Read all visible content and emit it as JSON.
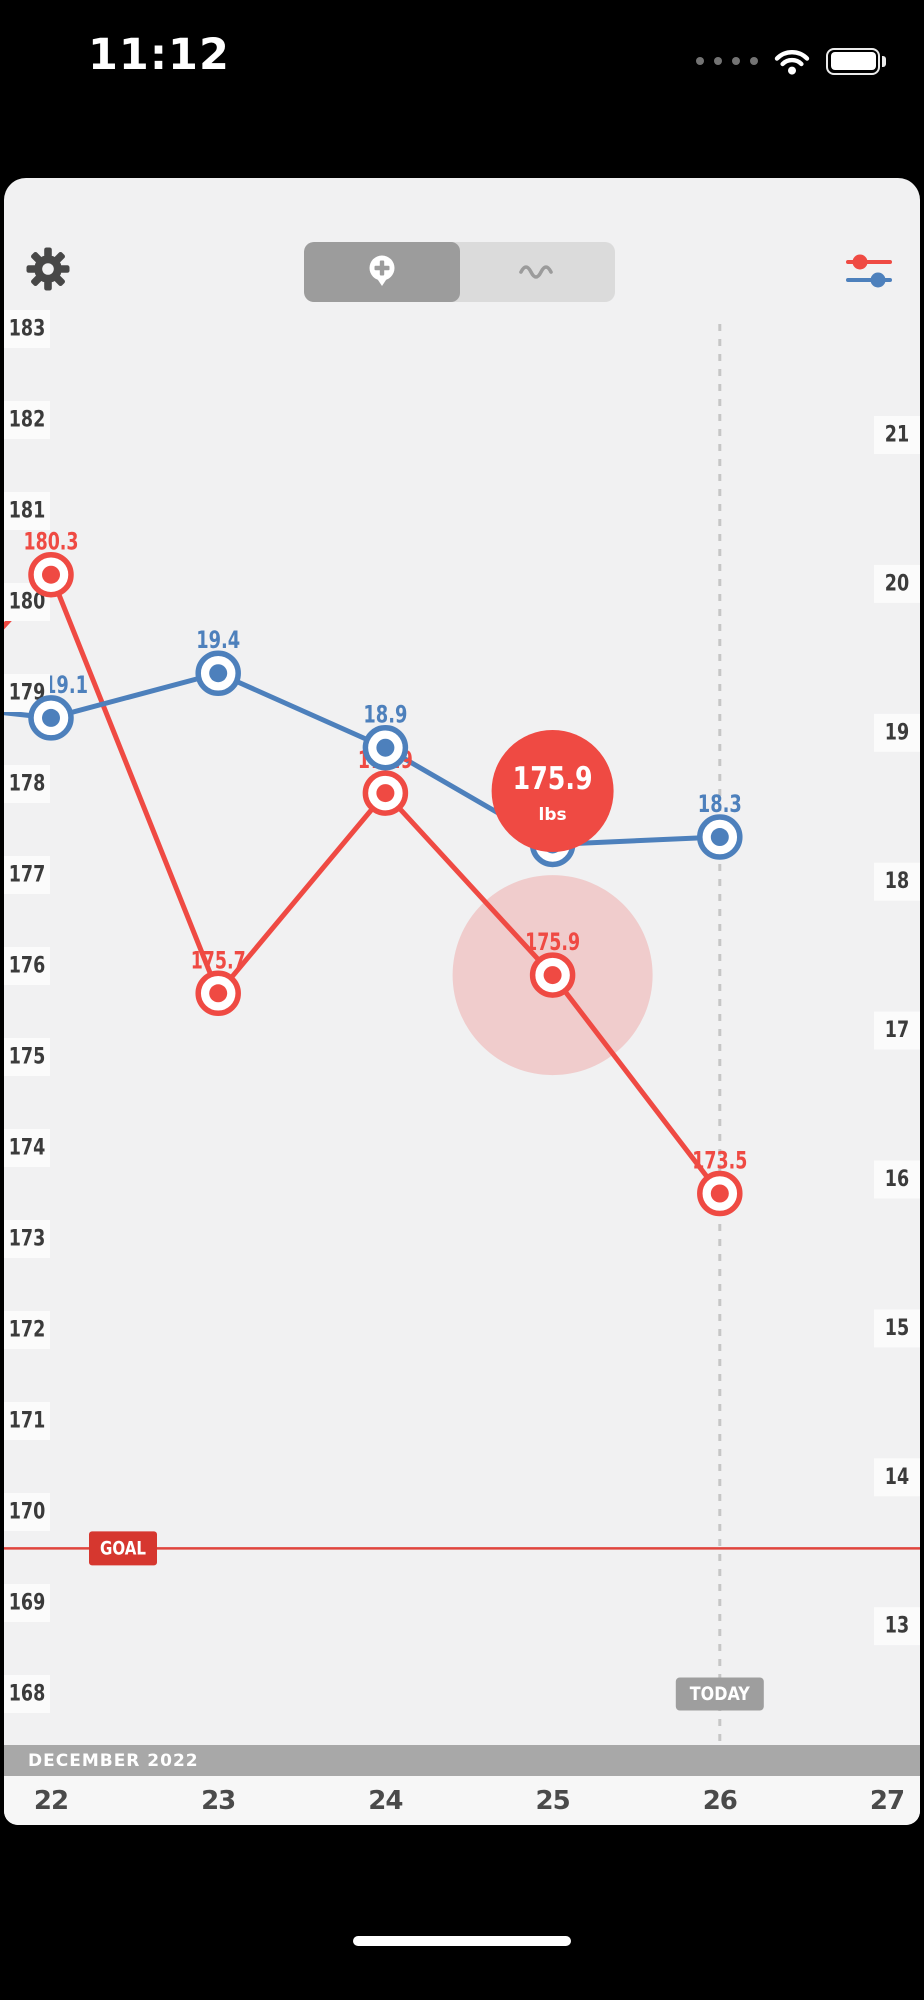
{
  "status_bar": {
    "time": "11:12",
    "icons": [
      "cellular-dots-icon",
      "wifi-icon",
      "battery-full-icon"
    ]
  },
  "toolbar": {
    "settings_icon": "gear-icon",
    "segmented_control": {
      "segments": [
        {
          "icon": "add-entry-pin-icon",
          "selected": true
        },
        {
          "icon": "trend-wave-icon",
          "selected": false
        }
      ]
    },
    "series_filter_icon": "red-blue-sliders-icon"
  },
  "chart_data": {
    "type": "line",
    "x_axis": {
      "month_label": "DECEMBER 2022",
      "ticks": [
        "22",
        "23",
        "24",
        "25",
        "26",
        "27"
      ]
    },
    "left_axis": {
      "unit": "lbs",
      "range": [
        168,
        183
      ],
      "ticks": [
        "183",
        "182",
        "181",
        "180",
        "179",
        "178",
        "177",
        "176",
        "175",
        "174",
        "173",
        "172",
        "171",
        "170",
        "169",
        "168"
      ]
    },
    "right_axis": {
      "range": [
        13,
        21
      ],
      "ticks": [
        "21",
        "20",
        "19",
        "18",
        "17",
        "16",
        "15",
        "14",
        "13"
      ]
    },
    "series": [
      {
        "name": "weight",
        "color": "#ef4a43",
        "axis": "left",
        "days": [
          22,
          23,
          24,
          25,
          26
        ],
        "values": [
          180.3,
          175.7,
          177.9,
          175.9,
          173.5
        ],
        "labels": [
          "180.3",
          "175.7",
          "177.9",
          "175.9",
          "173.5"
        ],
        "entry": {
          "day": 21.6,
          "value": 179.5
        }
      },
      {
        "name": "secondary",
        "color": "#4d80bc",
        "axis": "right",
        "days": [
          22,
          23,
          24,
          25,
          26
        ],
        "values": [
          19.1,
          19.4,
          18.9,
          18.25,
          18.3
        ],
        "labels": [
          "19.1",
          "19.4",
          "18.9",
          null,
          "18.3"
        ],
        "entry": {
          "day": 21.6,
          "value": 19.15
        }
      }
    ],
    "selected_point": {
      "series": "weight",
      "day": 25,
      "value": "175.9",
      "unit": "lbs"
    },
    "goal": {
      "label": "GOAL",
      "value": 169.6,
      "color": "#d6372f",
      "line_color": "#e0453d"
    },
    "today": {
      "label": "TODAY",
      "day": 26
    }
  },
  "colors": {
    "red": "#ef4a43",
    "blue": "#4d80bc",
    "card_bg": "#f1f1f2"
  },
  "system": {
    "home_indicator": true
  }
}
